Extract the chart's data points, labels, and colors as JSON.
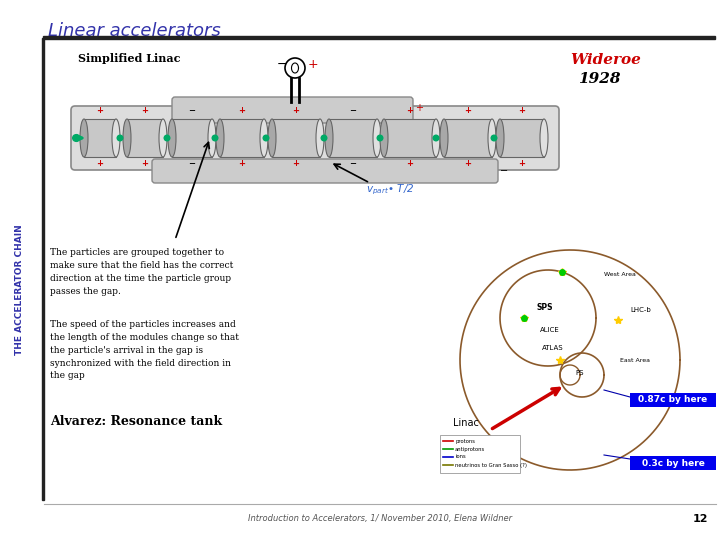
{
  "title": "Linear accelerators",
  "title_color": "#3333aa",
  "title_fontsize": 13,
  "side_text": "THE ACCELERATOR CHAIN",
  "side_text_color": "#3333aa",
  "simplified_linac_label": "Simplified Linac",
  "wideroe_text": "Wideroe",
  "year_text": "1928",
  "wideroe_color": "#cc0000",
  "year_color": "#000000",
  "para1": "The particles are grouped together to\nmake sure that the field has the correct\ndirection at the time the particle group\npasses the gap.",
  "para2": "The speed of the particles increases and\nthe length of the modules change so that\nthe particle's arrival in the gap is\nsynchronized with the field direction in\nthe gap",
  "alvarez_text": "Alvarez: Resonance tank",
  "linac_label": "Linac",
  "speed1_text": "0.87c by here",
  "speed2_text": "0.3c by here",
  "speed1_bg": "#0000ee",
  "speed2_bg": "#0000ee",
  "footer_text": "Introduction to Accelerators, 1/ November 2010, Elena Wildner",
  "page_num": "12",
  "bg_color": "#ffffff",
  "header_bar_color": "#222222",
  "side_bar_color": "#222222",
  "body_font": 6.5
}
